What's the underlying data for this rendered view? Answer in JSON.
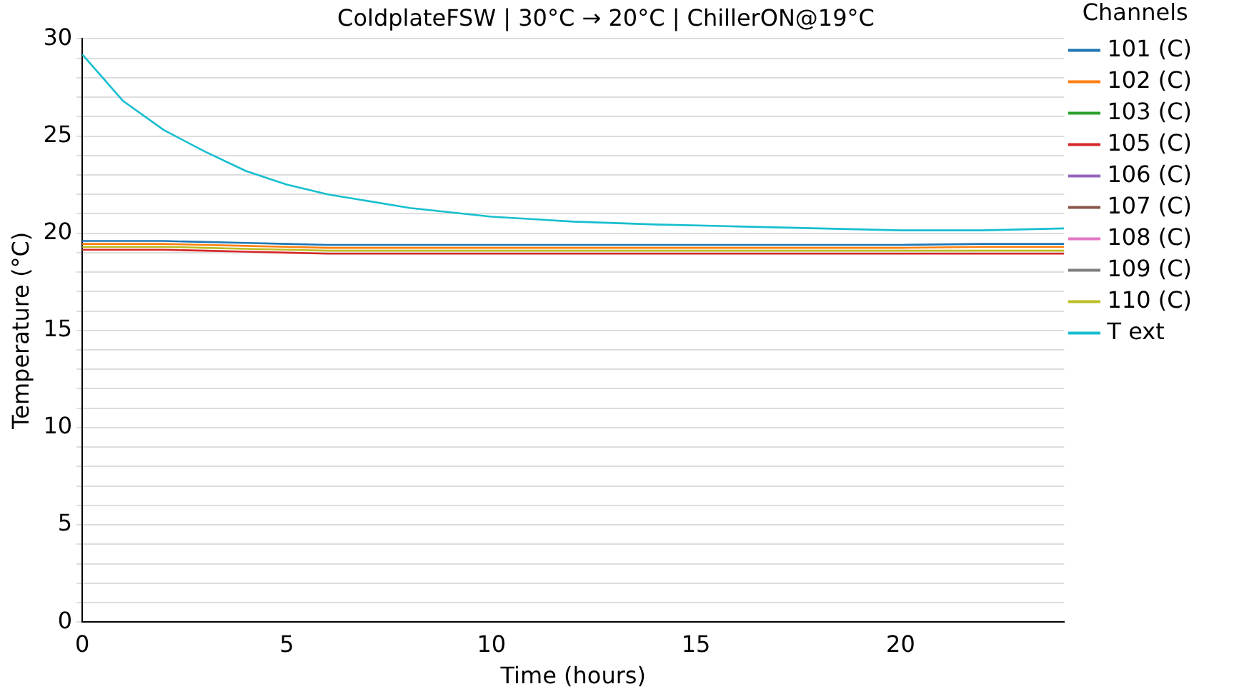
{
  "chart_data": {
    "type": "line",
    "title": "ColdplateFSW | 30°C → 20°C | ChillerON@19°C",
    "xlabel": "Time (hours)",
    "ylabel": "Temperature (°C)",
    "legend_title": "Channels",
    "legend": "right",
    "grid": "y",
    "marker": "none",
    "line_style": "solid",
    "x": [
      0,
      1,
      2,
      3,
      4,
      5,
      6,
      8,
      10,
      12,
      14,
      16,
      18,
      20,
      22,
      24
    ],
    "xlim": [
      0,
      24
    ],
    "xticks": [
      0,
      5,
      10,
      15,
      20
    ],
    "ylim": [
      0,
      30
    ],
    "yticks": [
      0,
      {
        "value": 1,
        "label": null
      },
      {
        "value": 2,
        "label": null
      },
      {
        "value": 3,
        "label": null
      },
      {
        "value": 4,
        "label": null
      },
      5,
      {
        "value": 6,
        "label": null
      },
      {
        "value": 7,
        "label": null
      },
      {
        "value": 8,
        "label": null
      },
      {
        "value": 9,
        "label": null
      },
      10,
      {
        "value": 11,
        "label": null
      },
      {
        "value": 12,
        "label": null
      },
      {
        "value": 13,
        "label": null
      },
      {
        "value": 14,
        "label": null
      },
      15,
      {
        "value": 16,
        "label": null
      },
      {
        "value": 17,
        "label": null
      },
      {
        "value": 18,
        "label": null
      },
      {
        "value": 19,
        "label": null
      },
      20,
      {
        "value": 21,
        "label": null
      },
      {
        "value": 22,
        "label": null
      },
      {
        "value": 23,
        "label": null
      },
      {
        "value": 24,
        "label": null
      },
      25,
      {
        "value": 26,
        "label": null
      },
      {
        "value": 27,
        "label": null
      },
      {
        "value": 28,
        "label": null
      },
      {
        "value": 29,
        "label": null
      },
      30
    ],
    "series": [
      {
        "name": "101 (C)",
        "color": "#1f77b4",
        "values": [
          19.6,
          19.6,
          19.6,
          19.55,
          19.5,
          19.45,
          19.4,
          19.4,
          19.4,
          19.4,
          19.4,
          19.4,
          19.4,
          19.4,
          19.45,
          19.45
        ]
      },
      {
        "name": "102 (C)",
        "color": "#ff7f0e",
        "values": [
          19.45,
          19.45,
          19.45,
          19.4,
          19.35,
          19.3,
          19.25,
          19.25,
          19.25,
          19.25,
          19.25,
          19.25,
          19.25,
          19.25,
          19.3,
          19.3
        ]
      },
      {
        "name": "103 (C)",
        "color": "#2ca02c",
        "values": [
          null,
          null,
          null,
          null,
          null,
          null,
          null,
          null,
          null,
          null,
          null,
          null,
          null,
          null,
          null,
          null
        ]
      },
      {
        "name": "105 (C)",
        "color": "#d62728",
        "values": [
          19.15,
          19.15,
          19.15,
          19.1,
          19.05,
          19.0,
          18.95,
          18.95,
          18.95,
          18.95,
          18.95,
          18.95,
          18.95,
          18.95,
          18.95,
          18.95
        ]
      },
      {
        "name": "106 (C)",
        "color": "#9467bd",
        "values": [
          null,
          null,
          null,
          null,
          null,
          null,
          null,
          null,
          null,
          null,
          null,
          null,
          null,
          null,
          null,
          null
        ]
      },
      {
        "name": "107 (C)",
        "color": "#8c564b",
        "values": [
          null,
          null,
          null,
          null,
          null,
          null,
          null,
          null,
          null,
          null,
          null,
          null,
          null,
          null,
          null,
          null
        ]
      },
      {
        "name": "108 (C)",
        "color": "#e377c2",
        "values": [
          null,
          null,
          null,
          null,
          null,
          null,
          null,
          null,
          null,
          null,
          null,
          null,
          null,
          null,
          null,
          null
        ]
      },
      {
        "name": "109 (C)",
        "color": "#7f7f7f",
        "values": [
          null,
          null,
          null,
          null,
          null,
          null,
          null,
          null,
          null,
          null,
          null,
          null,
          null,
          null,
          null,
          null
        ]
      },
      {
        "name": "110 (C)",
        "color": "#bcbd22",
        "values": [
          19.3,
          19.3,
          19.3,
          19.25,
          19.2,
          19.15,
          19.1,
          19.1,
          19.1,
          19.1,
          19.1,
          19.1,
          19.1,
          19.1,
          19.1,
          19.1
        ]
      },
      {
        "name": "T ext",
        "color": "#17becf",
        "values": [
          29.2,
          26.8,
          25.3,
          24.2,
          23.2,
          22.5,
          22.0,
          21.3,
          20.85,
          20.6,
          20.45,
          20.35,
          20.25,
          20.15,
          20.15,
          20.25
        ]
      }
    ]
  }
}
